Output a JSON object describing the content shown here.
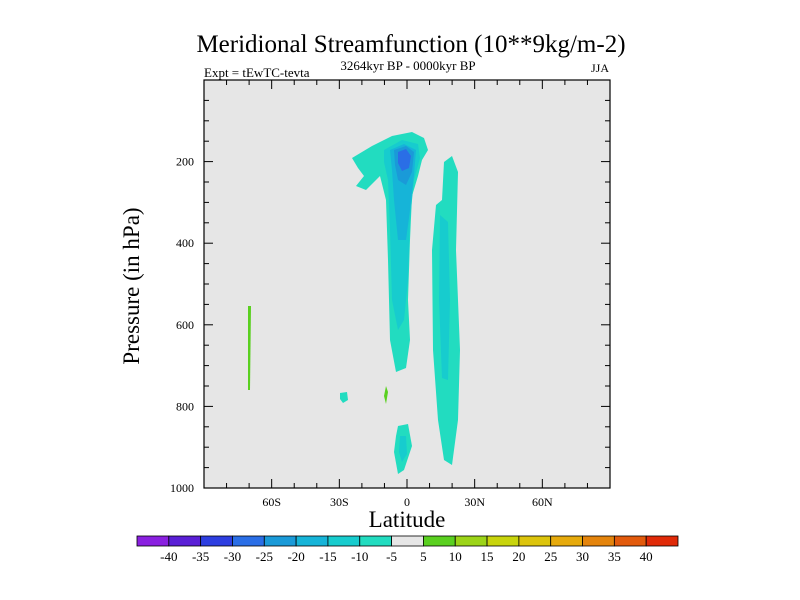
{
  "chart_data": {
    "type": "contour",
    "title": "Meridional Streamfunction (10**9kg/m-2)",
    "subtitle_left": "Expt = tEwTC-tevta",
    "subtitle_center": "3264kyr BP - 0000kyr BP",
    "subtitle_right": "JJA",
    "xlabel": "Latitude",
    "ylabel": "Pressure (in hPa)",
    "xlim": [
      -90,
      90
    ],
    "ylim": [
      1000,
      0
    ],
    "x_ticks": [
      {
        "value": -60,
        "label": "60S"
      },
      {
        "value": -30,
        "label": "30S"
      },
      {
        "value": 0,
        "label": "0"
      },
      {
        "value": 30,
        "label": "30N"
      },
      {
        "value": 60,
        "label": "60N"
      }
    ],
    "y_ticks": [
      {
        "value": 200,
        "label": "200"
      },
      {
        "value": 400,
        "label": "400"
      },
      {
        "value": 600,
        "label": "600"
      },
      {
        "value": 800,
        "label": "800"
      },
      {
        "value": 1000,
        "label": "1000"
      }
    ],
    "colorbar": {
      "labels": [
        "-40",
        "-35",
        "-30",
        "-25",
        "-20",
        "-15",
        "-10",
        "-5",
        "5",
        "10",
        "15",
        "20",
        "25",
        "30",
        "35",
        "40"
      ],
      "colors": [
        "#8a20e0",
        "#5a1fd6",
        "#2d3ee0",
        "#2a6ee6",
        "#1a9ad8",
        "#16b4d8",
        "#17ccce",
        "#22dcc0",
        "#e6e6e6",
        "#5ad020",
        "#9cd418",
        "#c8d40c",
        "#dcc40c",
        "#e6aa0c",
        "#e4840c",
        "#e25a0c",
        "#e02a08"
      ]
    },
    "regions": [
      {
        "name": "upper-cell-outer",
        "level": -5,
        "color": "#22dcc0"
      },
      {
        "name": "upper-cell-mid",
        "level": -10,
        "color": "#17ccce"
      },
      {
        "name": "upper-cell-core",
        "level": -15,
        "color": "#16b4d8"
      },
      {
        "name": "upper-cell-peak",
        "level": -20,
        "color": "#1a9ad8"
      },
      {
        "name": "upper-cell-max",
        "level": -25,
        "color": "#2a6ee6"
      },
      {
        "name": "north-column",
        "level": -5,
        "color": "#22dcc0"
      },
      {
        "name": "north-column-core",
        "level": -10,
        "color": "#17ccce"
      },
      {
        "name": "lower-blob",
        "level": -5,
        "color": "#22dcc0"
      },
      {
        "name": "lower-blob-core",
        "level": -10,
        "color": "#17ccce"
      },
      {
        "name": "small-blob-30s",
        "level": -5,
        "color": "#22dcc0"
      },
      {
        "name": "green-streak-70s",
        "level": 5,
        "color": "#5ad020"
      },
      {
        "name": "green-dot-10s",
        "level": 5,
        "color": "#5ad020"
      }
    ]
  }
}
